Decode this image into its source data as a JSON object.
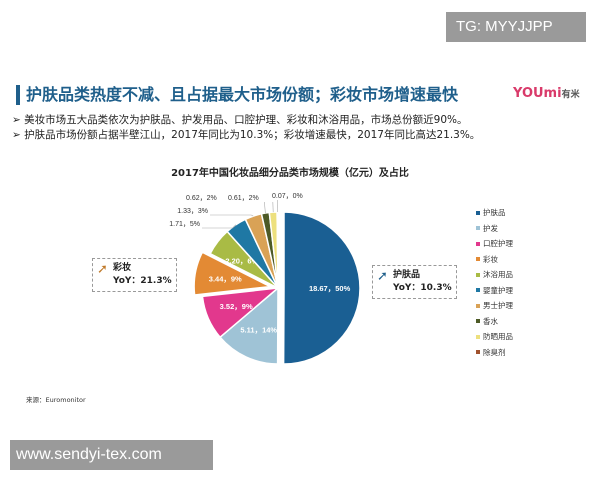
{
  "watermark_top": "TG: MYYJJPP",
  "watermark_bottom": "www.sendyi-tex.com",
  "title": "护肤品类热度不减、且占据最大市场份额；彩妆市场增速最快",
  "logo": {
    "text": "YOUmi",
    "suffix": "有米"
  },
  "bullets": [
    "美妆市场五大品类依次为护肤品、护发用品、口腔护理、彩妆和沐浴用品，市场总份额近90%。",
    "护肤品市场份额占据半壁江山，2017年同比为10.3%；彩妆增速最快，2017年同比高达21.3%。"
  ],
  "bullet_marker": "➢",
  "callouts": [
    {
      "name": "彩妆",
      "yoy": "YoY：21.3%",
      "color": "#c07a2a"
    },
    {
      "name": "护肤品",
      "yoy": "YoY：10.3%",
      "color": "#1f5f8b"
    }
  ],
  "source": "来源：Euromonitor",
  "chart_data": {
    "type": "pie",
    "title": "2017年中国化妆品细分品类市场规模（亿元）及占比",
    "legend_placement": "right",
    "categories": [
      "护肤品",
      "护发",
      "口腔护理",
      "彩妆",
      "沐浴用品",
      "婴童护理",
      "男士护理",
      "香水",
      "防晒用品",
      "除臭剂"
    ],
    "values": [
      18.67,
      5.11,
      3.52,
      3.44,
      2.2,
      1.71,
      1.33,
      0.62,
      0.61,
      0.07
    ],
    "percents": [
      50,
      14,
      9,
      9,
      6,
      5,
      3,
      2,
      2,
      0
    ],
    "labels": [
      "18.67，50%",
      "5.11，14%",
      "3.52，9%",
      "3.44，9%",
      "2.20，6%",
      "1.71，5%",
      "1.33，3%",
      "0.62，2%",
      "0.61，2%",
      "0.07，0%"
    ],
    "colors": [
      "#1a5f93",
      "#9fc3d6",
      "#e2388d",
      "#e38a34",
      "#a9bb45",
      "#1f78a4",
      "#d9a256",
      "#4d5a26",
      "#ede07e",
      "#a0522d"
    ],
    "exploded": [
      "护肤品",
      "彩妆"
    ]
  }
}
